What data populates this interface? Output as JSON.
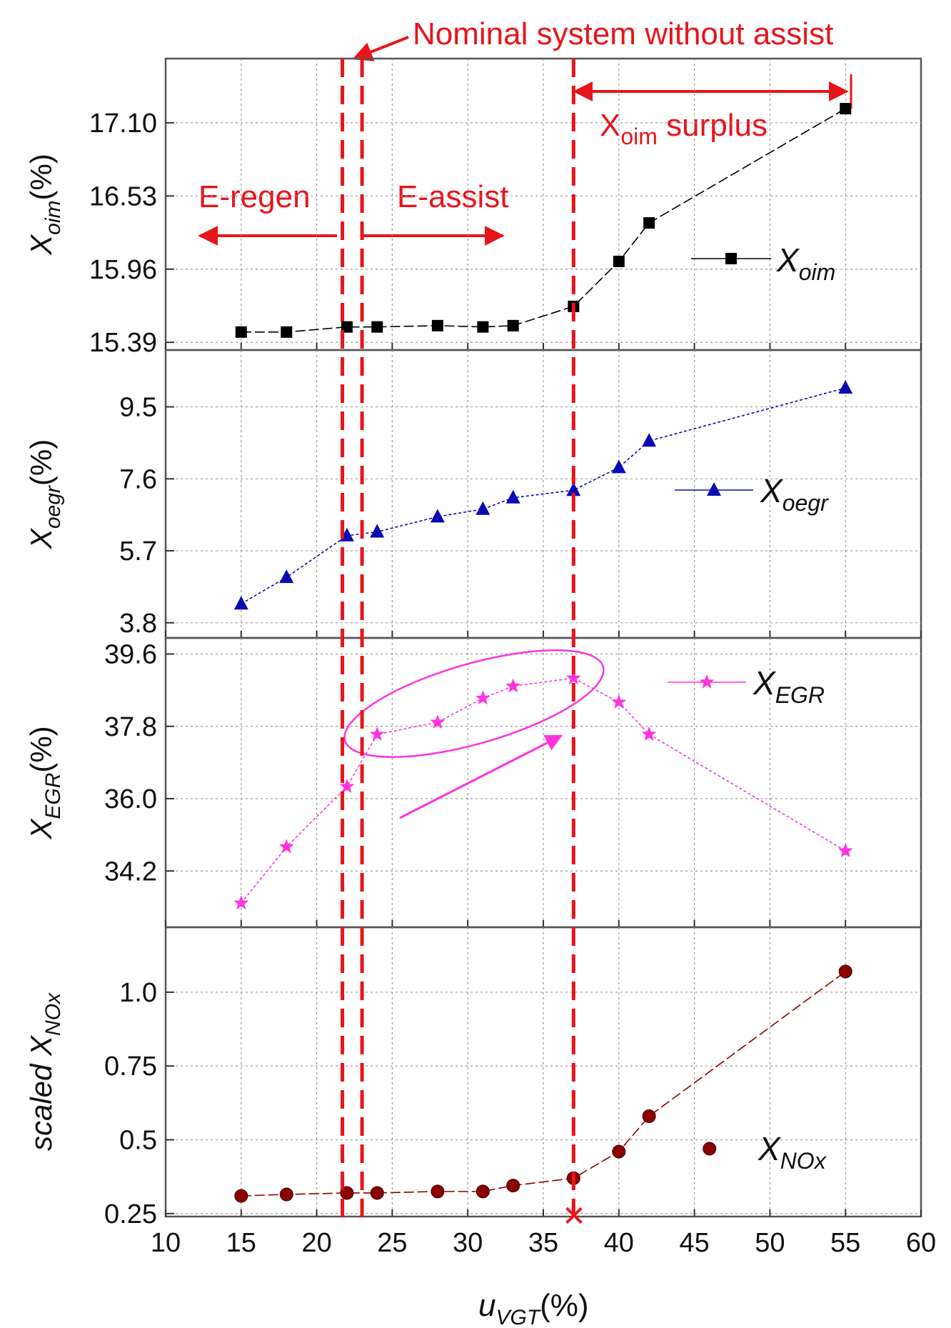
{
  "chart_data": {
    "type": "line",
    "shared_x_axis": {
      "label_main": "u",
      "label_sub": "VGT",
      "label_tail": "(%)",
      "ticks": [
        "10",
        "15",
        "20",
        "25",
        "30",
        "35",
        "40",
        "45",
        "50",
        "55",
        "60"
      ],
      "tick_values": [
        10,
        15,
        20,
        25,
        30,
        35,
        40,
        45,
        50,
        55,
        60
      ],
      "range": [
        10,
        60
      ]
    },
    "annotations": {
      "nominal": "Nominal system without assist",
      "e_regen": "E-regen",
      "e_assist": "E-assist",
      "surplus_main": "X",
      "surplus_sub": "oim",
      "surplus_tail": " surplus",
      "vlines_x": [
        21.7,
        23.0,
        37.0
      ]
    },
    "colors": {
      "annotation": "#e8141b",
      "oim": "#000000",
      "oegr": "#0a0ab4",
      "egr": "#ff33dd",
      "nox": "#8b0000",
      "grid": "#9a9a9a"
    },
    "panels": [
      {
        "key": "oim",
        "ylabel_main": "X",
        "ylabel_sub": "oim",
        "ylabel_tail": "(%)",
        "yticks": [
          "15.39",
          "15.96",
          "16.53",
          "17.10"
        ],
        "ytick_values": [
          15.39,
          15.96,
          16.53,
          17.1
        ],
        "ylim": [
          15.33,
          17.6
        ],
        "legend_main": "X",
        "legend_sub": "oim",
        "marker": "square",
        "x": [
          15,
          18,
          22,
          24,
          28,
          31,
          33,
          37,
          40,
          42,
          55
        ],
        "y": [
          15.47,
          15.47,
          15.51,
          15.51,
          15.52,
          15.51,
          15.52,
          15.67,
          16.02,
          16.32,
          17.21
        ]
      },
      {
        "key": "oegr",
        "ylabel_main": "X",
        "ylabel_sub": "oegr",
        "ylabel_tail": "(%)",
        "yticks": [
          "3.8",
          "5.7",
          "7.6",
          "9.5"
        ],
        "ytick_values": [
          3.8,
          5.7,
          7.6,
          9.5
        ],
        "ylim": [
          3.4,
          11.0
        ],
        "legend_main": "X",
        "legend_sub": "oegr",
        "marker": "triangle",
        "x": [
          15,
          18,
          22,
          24,
          28,
          31,
          33,
          37,
          40,
          42,
          55
        ],
        "y": [
          4.3,
          5.0,
          6.1,
          6.2,
          6.6,
          6.8,
          7.1,
          7.3,
          7.9,
          8.6,
          10.0
        ]
      },
      {
        "key": "egr",
        "ylabel_main": "X",
        "ylabel_sub": "EGR",
        "ylabel_tail": "(%)",
        "yticks": [
          "34.2",
          "36.0",
          "37.8",
          "39.6"
        ],
        "ytick_values": [
          34.2,
          36.0,
          37.8,
          39.6
        ],
        "ylim": [
          32.8,
          40.0
        ],
        "legend_main": "X",
        "legend_sub": "EGR",
        "marker": "star",
        "x": [
          15,
          18,
          22,
          24,
          28,
          31,
          33,
          37,
          40,
          42,
          55
        ],
        "y": [
          33.4,
          34.8,
          36.3,
          37.6,
          37.9,
          38.5,
          38.8,
          39.0,
          38.4,
          37.6,
          34.7
        ]
      },
      {
        "key": "nox",
        "ylabel_main": "scaled X",
        "ylabel_sub": "NOx",
        "ylabel_tail": "",
        "yticks": [
          "0.25",
          "0.5",
          "0.75",
          "1.0"
        ],
        "ytick_values": [
          0.25,
          0.5,
          0.75,
          1.0
        ],
        "ylim": [
          0.24,
          1.22
        ],
        "legend_main": "X",
        "legend_sub": "NOx",
        "marker": "circle",
        "x": [
          15,
          18,
          22,
          24,
          28,
          31,
          33,
          37,
          40,
          42,
          55
        ],
        "y": [
          0.31,
          0.315,
          0.32,
          0.32,
          0.325,
          0.325,
          0.345,
          0.37,
          0.46,
          0.58,
          1.07
        ],
        "extra_point": {
          "x": 46,
          "y": 0.47
        }
      }
    ]
  }
}
